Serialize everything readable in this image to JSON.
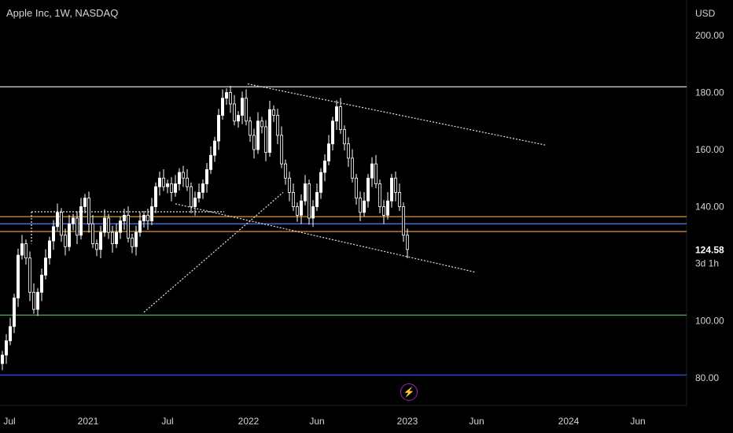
{
  "header": {
    "title": "Apple Inc, 1W, NASDAQ"
  },
  "chart_data": {
    "type": "candlestick",
    "currency_label": "USD",
    "y_ticks": [
      "200.00",
      "180.00",
      "160.00",
      "140.00",
      "100.00",
      "80.00"
    ],
    "y_tick_values": [
      200,
      180,
      160,
      140,
      100,
      80
    ],
    "x_ticks": [
      "Jul",
      "2021",
      "Jul",
      "2022",
      "Jun",
      "2023",
      "Jun",
      "2024",
      "Jun"
    ],
    "ylim": [
      75,
      212
    ],
    "last_price": {
      "label": "124.58",
      "value": 124.58,
      "countdown": "3d 1h",
      "color": "#ffffff"
    },
    "horizontal_levels": [
      {
        "value": 182.0,
        "color": "#e0e0e0"
      },
      {
        "value": 136.5,
        "color": "#f7a13b"
      },
      {
        "value": 134.0,
        "color": "#4a7dff"
      },
      {
        "value": 131.3,
        "color": "#f7a13b"
      },
      {
        "value": 102.0,
        "color": "#4caf50"
      },
      {
        "value": 81.0,
        "color": "#2d4cff"
      }
    ],
    "closes": [
      88,
      93,
      98,
      108,
      123,
      127,
      122,
      110,
      104,
      110,
      116,
      122,
      128,
      133,
      138,
      130,
      126,
      134,
      136,
      130,
      140,
      143,
      134,
      127,
      125,
      131,
      136,
      131,
      127,
      131,
      135,
      137,
      129,
      126,
      131,
      135,
      137,
      135,
      140,
      147,
      150,
      147,
      148,
      145,
      148,
      152,
      150,
      147,
      140,
      143,
      145,
      148,
      153,
      158,
      163,
      172,
      178,
      180,
      176,
      170,
      172,
      178,
      170,
      165,
      160,
      170,
      168,
      159,
      174,
      172,
      165,
      155,
      150,
      145,
      140,
      137,
      142,
      148,
      136,
      140,
      145,
      152,
      156,
      162,
      170,
      175,
      167,
      162,
      157,
      150,
      143,
      138,
      142,
      150,
      155,
      148,
      140,
      137,
      142,
      150,
      145,
      140,
      130,
      125
    ],
    "trendlines": [
      {
        "from": [
          183,
          103.0
        ],
        "to": [
          360,
          145.0
        ],
        "dashed": true
      },
      {
        "from": [
          223,
          141.0
        ],
        "to": [
          605,
          117.0
        ],
        "dashed": true
      },
      {
        "from": [
          315,
          183.0
        ],
        "to": [
          695,
          161.5
        ],
        "dashed": true
      },
      {
        "from": [
          40,
          138.2
        ],
        "to": [
          285,
          138.2
        ],
        "dashed": true
      }
    ]
  },
  "overlay": {
    "icon": "lightning-icon"
  }
}
